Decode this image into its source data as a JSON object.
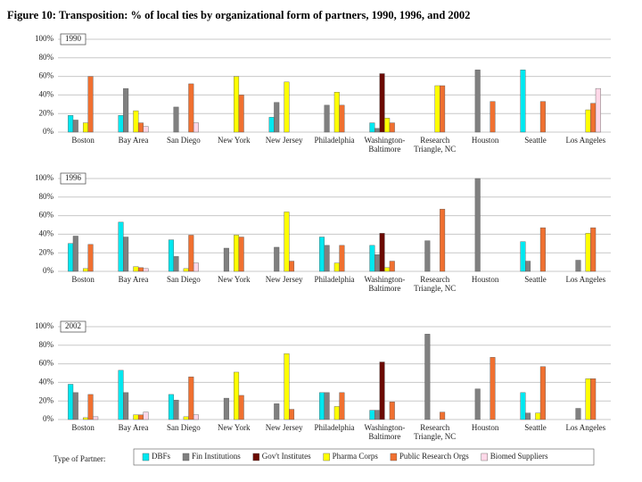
{
  "title": "Figure 10: Transposition: % of local ties by organizational form of partners, 1990, 1996, and 2002",
  "legend_title": "Type of Partner:",
  "chart_data": [
    {
      "type": "bar",
      "title": "1990",
      "categories": [
        "Boston",
        "Bay Area",
        "San Diego",
        "New York",
        "New Jersey",
        "Philadelphia",
        "Washington-\nBaltimore",
        "Research\nTriangle, NC",
        "Houston",
        "Seattle",
        "Los Angeles"
      ],
      "series": [
        {
          "color": "#00e8f0",
          "values": [
            18,
            18,
            null,
            null,
            16,
            null,
            10,
            null,
            null,
            67,
            null
          ]
        },
        {
          "color": "#808080",
          "values": [
            13,
            47,
            27,
            null,
            32,
            29,
            4,
            null,
            67,
            null,
            null
          ]
        },
        {
          "color": "#6b0a00",
          "values": [
            null,
            null,
            null,
            null,
            null,
            null,
            63,
            null,
            null,
            null,
            null
          ]
        },
        {
          "color": "#ffff00",
          "values": [
            10,
            23,
            null,
            60,
            54,
            43,
            15,
            50,
            null,
            null,
            24
          ]
        },
        {
          "color": "#f07030",
          "values": [
            60,
            10,
            52,
            40,
            null,
            29,
            10,
            50,
            33,
            33,
            31
          ]
        },
        {
          "color": "#ffd8e8",
          "values": [
            null,
            6,
            10,
            null,
            null,
            null,
            null,
            null,
            null,
            null,
            47
          ]
        }
      ],
      "ylim": [
        0,
        100
      ],
      "yticks": [
        {
          "value": 0,
          "label": "0%"
        },
        {
          "value": 20,
          "label": "20%"
        },
        {
          "value": 40,
          "label": "40%"
        },
        {
          "value": 60,
          "label": "60%"
        },
        {
          "value": 80,
          "label": "80%"
        },
        {
          "value": 100,
          "label": "100%"
        }
      ],
      "grid": true
    },
    {
      "type": "bar",
      "title": "1996",
      "categories": [
        "Boston",
        "Bay Area",
        "San Diego",
        "New York",
        "New Jersey",
        "Philadelphia",
        "Washington-\nBaltimore",
        "Research\nTriangle, NC",
        "Houston",
        "Seattle",
        "Los Angeles"
      ],
      "series": [
        {
          "color": "#00e8f0",
          "values": [
            30,
            53,
            34,
            null,
            null,
            37,
            28,
            null,
            null,
            32,
            null
          ]
        },
        {
          "color": "#808080",
          "values": [
            38,
            37,
            16,
            25,
            26,
            28,
            18,
            33,
            100,
            11,
            12
          ]
        },
        {
          "color": "#6b0a00",
          "values": [
            null,
            null,
            null,
            null,
            null,
            null,
            41,
            null,
            null,
            null,
            null
          ]
        },
        {
          "color": "#ffff00",
          "values": [
            3,
            5,
            3,
            39,
            64,
            9,
            4,
            null,
            null,
            null,
            41
          ]
        },
        {
          "color": "#f07030",
          "values": [
            29,
            4,
            39,
            37,
            11,
            28,
            11,
            67,
            null,
            47,
            47
          ]
        },
        {
          "color": "#ffd8e8",
          "values": [
            null,
            3,
            9,
            null,
            null,
            null,
            null,
            null,
            null,
            null,
            null
          ]
        }
      ],
      "ylim": [
        0,
        100
      ],
      "yticks": [
        {
          "value": 0,
          "label": "0%"
        },
        {
          "value": 20,
          "label": "20%"
        },
        {
          "value": 40,
          "label": "40%"
        },
        {
          "value": 60,
          "label": "60%"
        },
        {
          "value": 80,
          "label": "80%"
        },
        {
          "value": 100,
          "label": "100%"
        }
      ],
      "grid": true
    },
    {
      "type": "bar",
      "title": "2002",
      "categories": [
        "Boston",
        "Bay Area",
        "San Diego",
        "New York",
        "New Jersey",
        "Philadelphia",
        "Washington-\nBaltimore",
        "Research\nTriangle, NC",
        "Houston",
        "Seattle",
        "Los Angeles"
      ],
      "series": [
        {
          "name": "DBFs",
          "color": "#00e8f0",
          "values": [
            38,
            53,
            27,
            null,
            null,
            29,
            10,
            null,
            null,
            29,
            null
          ]
        },
        {
          "name": "Fin Institutions",
          "color": "#808080",
          "values": [
            29,
            29,
            21,
            23,
            17,
            29,
            10,
            92,
            33,
            7,
            12
          ]
        },
        {
          "name": "Gov't Institutes",
          "color": "#6b0a00",
          "values": [
            null,
            null,
            null,
            null,
            null,
            null,
            62,
            null,
            null,
            null,
            null
          ]
        },
        {
          "name": "Pharma Corps",
          "color": "#ffff00",
          "values": [
            2,
            5,
            3,
            51,
            71,
            14,
            null,
            null,
            null,
            7,
            44
          ]
        },
        {
          "name": "Public Research Orgs",
          "color": "#f07030",
          "values": [
            27,
            5,
            46,
            26,
            11,
            29,
            19,
            8,
            67,
            57,
            44
          ]
        },
        {
          "name": "Biomed Suppliers",
          "color": "#ffd8e8",
          "values": [
            3,
            8,
            5,
            null,
            null,
            null,
            null,
            null,
            null,
            null,
            null
          ]
        }
      ],
      "ylim": [
        0,
        100
      ],
      "yticks": [
        {
          "value": 0,
          "label": "0%"
        },
        {
          "value": 20,
          "label": "20%"
        },
        {
          "value": 40,
          "label": "40%"
        },
        {
          "value": 60,
          "label": "60%"
        },
        {
          "value": 80,
          "label": "80%"
        },
        {
          "value": 100,
          "label": "100%"
        }
      ],
      "grid": true
    }
  ]
}
